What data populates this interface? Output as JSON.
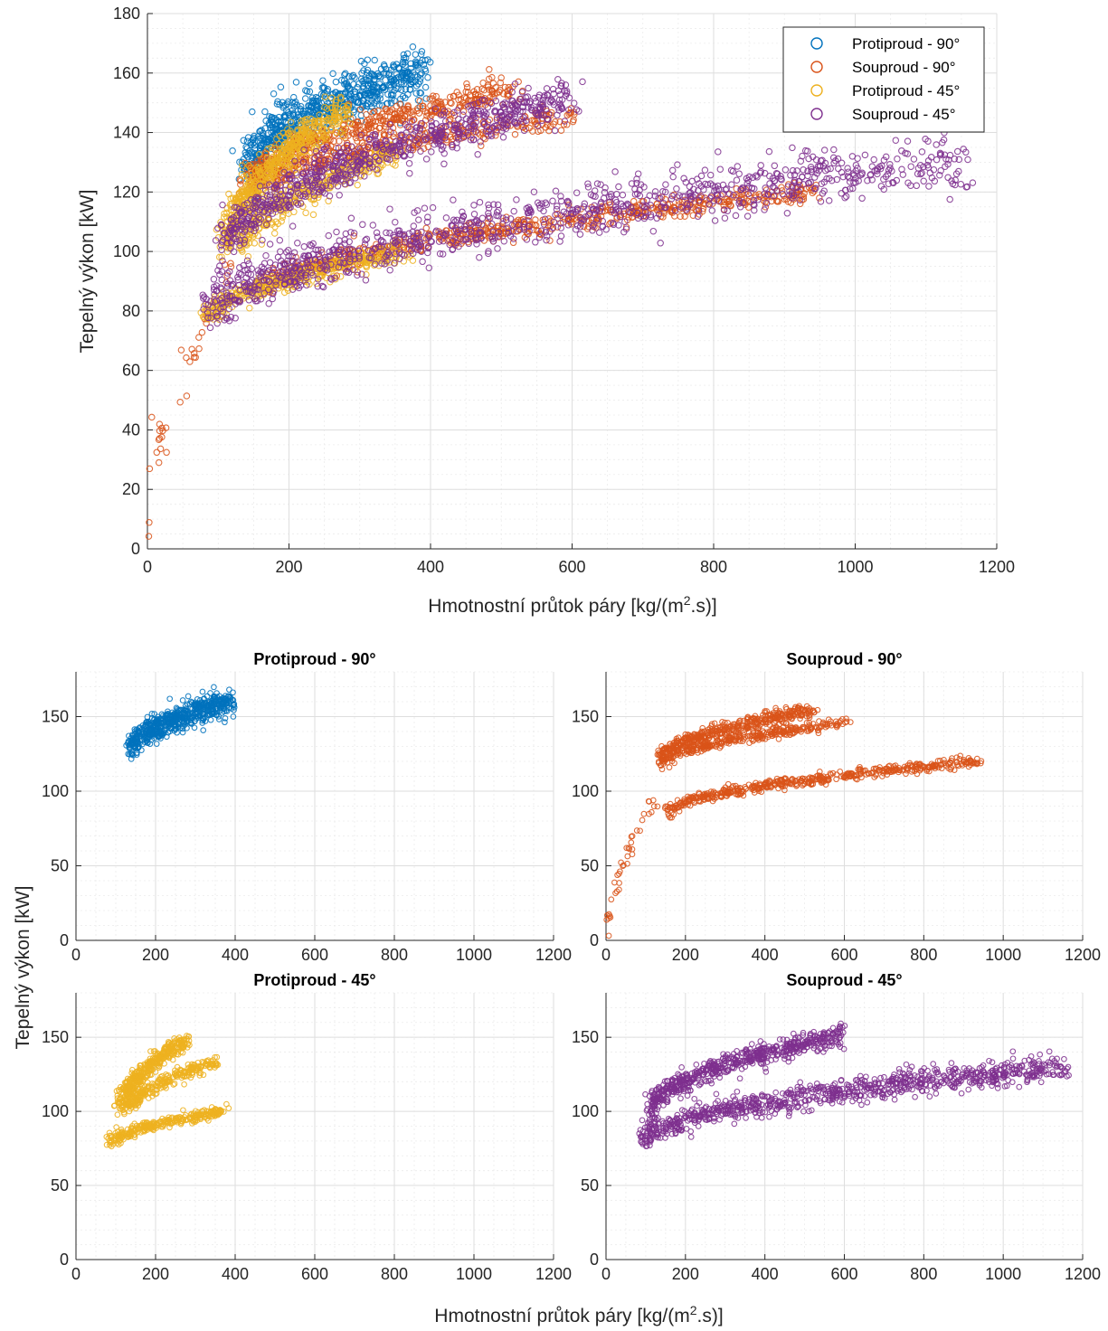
{
  "chart_data": [
    {
      "type": "scatter",
      "id": "main",
      "title": "",
      "xlabel": "Hmotnostní průtok páry [kg/(m².s)]",
      "xlabel_main": "Hmotnostní průtok páry [kg/(m",
      "xlabel_sup": "2",
      "xlabel_end": ".s)]",
      "ylabel": "Tepelný výkon [kW]",
      "xlim": [
        0,
        1200
      ],
      "ylim": [
        0,
        180
      ],
      "xticks": [
        "0",
        "200",
        "400",
        "600",
        "800",
        "1000",
        "1200"
      ],
      "yticks": [
        "0",
        "20",
        "40",
        "60",
        "80",
        "100",
        "120",
        "140",
        "160",
        "180"
      ],
      "grid": "major+minor",
      "legend_position": "top-right",
      "series": [
        {
          "name": "Protiproud - 90°",
          "color": "#0072BD",
          "clusters": [
            {
              "x": [
                140,
                390
              ],
              "y": [
                128,
                160
              ],
              "n": 700,
              "spread": 7
            }
          ]
        },
        {
          "name": "Souproud - 90°",
          "color": "#D95319",
          "clusters": [
            {
              "x": [
                140,
                520
              ],
              "y": [
                122,
                154
              ],
              "n": 450,
              "spread": 4
            },
            {
              "x": [
                140,
                610
              ],
              "y": [
                118,
                146
              ],
              "n": 350,
              "spread": 3
            },
            {
              "x": [
                160,
                940
              ],
              "y": [
                86,
                120
              ],
              "n": 600,
              "spread": 3
            },
            {
              "x": [
                0,
                120
              ],
              "y": [
                0,
                95
              ],
              "n": 40,
              "spread": 3
            }
          ]
        },
        {
          "name": "Protiproud - 45°",
          "color": "#EDB120",
          "clusters": [
            {
              "x": [
                110,
                280
              ],
              "y": [
                100,
                148
              ],
              "n": 500,
              "spread": 5
            },
            {
              "x": [
                130,
                350
              ],
              "y": [
                100,
                133
              ],
              "n": 300,
              "spread": 4
            },
            {
              "x": [
                85,
                370
              ],
              "y": [
                77,
                100
              ],
              "n": 350,
              "spread": 3
            }
          ]
        },
        {
          "name": "Souproud - 45°",
          "color": "#7E2F8E",
          "clusters": [
            {
              "x": [
                110,
                600
              ],
              "y": [
                100,
                152
              ],
              "n": 700,
              "spread": 6
            },
            {
              "x": [
                90,
                1160
              ],
              "y": [
                80,
                130
              ],
              "n": 1000,
              "spread": 7
            }
          ]
        }
      ]
    },
    {
      "type": "scatter",
      "id": "sub-protiproud-90",
      "title": "Protiproud - 90°",
      "color": "#0072BD",
      "xlim": [
        0,
        1200
      ],
      "ylim": [
        0,
        180
      ],
      "xticks": [
        "0",
        "200",
        "400",
        "600",
        "800",
        "1000",
        "1200"
      ],
      "yticks": [
        "0",
        "50",
        "100",
        "150"
      ],
      "clusters": [
        {
          "x": [
            140,
            390
          ],
          "y": [
            128,
            160
          ],
          "n": 600,
          "spread": 7
        }
      ]
    },
    {
      "type": "scatter",
      "id": "sub-souproud-90",
      "title": "Souproud - 90°",
      "color": "#D95319",
      "xlim": [
        0,
        1200
      ],
      "ylim": [
        0,
        180
      ],
      "xticks": [
        "0",
        "200",
        "400",
        "600",
        "800",
        "1000",
        "1200"
      ],
      "yticks": [
        "0",
        "50",
        "100",
        "150"
      ],
      "clusters": [
        {
          "x": [
            140,
            520
          ],
          "y": [
            122,
            154
          ],
          "n": 400,
          "spread": 4
        },
        {
          "x": [
            140,
            610
          ],
          "y": [
            118,
            146
          ],
          "n": 300,
          "spread": 3
        },
        {
          "x": [
            160,
            940
          ],
          "y": [
            86,
            120
          ],
          "n": 500,
          "spread": 3
        },
        {
          "x": [
            0,
            120
          ],
          "y": [
            0,
            95
          ],
          "n": 40,
          "spread": 3
        }
      ]
    },
    {
      "type": "scatter",
      "id": "sub-protiproud-45",
      "title": "Protiproud - 45°",
      "color": "#EDB120",
      "xlim": [
        0,
        1200
      ],
      "ylim": [
        0,
        180
      ],
      "xticks": [
        "0",
        "200",
        "400",
        "600",
        "800",
        "1000",
        "1200"
      ],
      "yticks": [
        "0",
        "50",
        "100",
        "150"
      ],
      "clusters": [
        {
          "x": [
            110,
            280
          ],
          "y": [
            100,
            148
          ],
          "n": 400,
          "spread": 5
        },
        {
          "x": [
            130,
            350
          ],
          "y": [
            100,
            133
          ],
          "n": 250,
          "spread": 4
        },
        {
          "x": [
            85,
            370
          ],
          "y": [
            77,
            100
          ],
          "n": 300,
          "spread": 3
        }
      ]
    },
    {
      "type": "scatter",
      "id": "sub-souproud-45",
      "title": "Souproud - 45°",
      "color": "#7E2F8E",
      "xlim": [
        0,
        1200
      ],
      "ylim": [
        0,
        180
      ],
      "xticks": [
        "0",
        "200",
        "400",
        "600",
        "800",
        "1000",
        "1200"
      ],
      "yticks": [
        "0",
        "50",
        "100",
        "150"
      ],
      "clusters": [
        {
          "x": [
            110,
            600
          ],
          "y": [
            100,
            152
          ],
          "n": 600,
          "spread": 6
        },
        {
          "x": [
            90,
            1160
          ],
          "y": [
            80,
            130
          ],
          "n": 900,
          "spread": 7
        }
      ]
    }
  ],
  "bottom_xlabel_main": "Hmotnostní průtok páry [kg/(m",
  "bottom_xlabel_sup": "2",
  "bottom_xlabel_end": ".s)]",
  "shared_ylabel": "Tepelný výkon [kW]"
}
